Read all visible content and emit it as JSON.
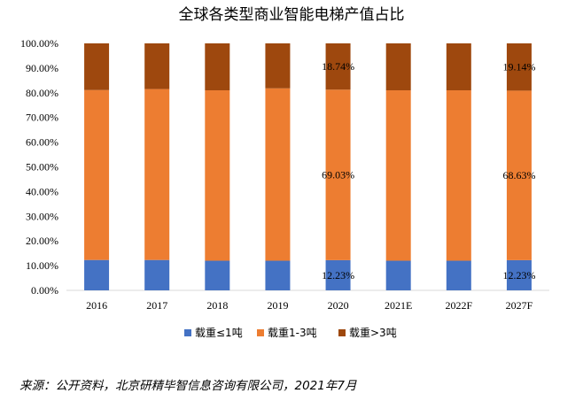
{
  "chart_data": {
    "type": "bar",
    "stacked": true,
    "title": "全球各类型商业智能电梯产值占比",
    "categories": [
      "2016",
      "2017",
      "2018",
      "2019",
      "2020",
      "2021E",
      "2022F",
      "2027F"
    ],
    "series": [
      {
        "name": "载重≤1吨",
        "color": "#4472C4",
        "values": [
          12.3,
          12.3,
          12.0,
          12.0,
          12.23,
          12.0,
          12.0,
          12.23
        ]
      },
      {
        "name": "载重1-3吨",
        "color": "#ED7D31",
        "values": [
          68.8,
          69.2,
          69.0,
          69.8,
          69.03,
          69.0,
          69.0,
          68.63
        ]
      },
      {
        "name": "载重>3吨",
        "color": "#9E480E",
        "values": [
          18.9,
          18.5,
          19.0,
          18.2,
          18.74,
          19.0,
          19.0,
          19.14
        ]
      }
    ],
    "data_labels": [
      {
        "category_index": 4,
        "series_index": 0,
        "text": "12.23%"
      },
      {
        "category_index": 4,
        "series_index": 1,
        "text": "69.03%"
      },
      {
        "category_index": 4,
        "series_index": 2,
        "text": "18.74%"
      },
      {
        "category_index": 7,
        "series_index": 0,
        "text": "12.23%"
      },
      {
        "category_index": 7,
        "series_index": 1,
        "text": "68.63%"
      },
      {
        "category_index": 7,
        "series_index": 2,
        "text": "19.14%"
      }
    ],
    "ylim": [
      0,
      100
    ],
    "yticks": [
      "0.00%",
      "10.00%",
      "20.00%",
      "30.00%",
      "40.00%",
      "50.00%",
      "60.00%",
      "70.00%",
      "80.00%",
      "90.00%",
      "100.00%"
    ],
    "grid": false,
    "legend_position": "bottom"
  },
  "source_text": "来源：公开资料，北京研精毕智信息咨询有限公司，2021年7月"
}
